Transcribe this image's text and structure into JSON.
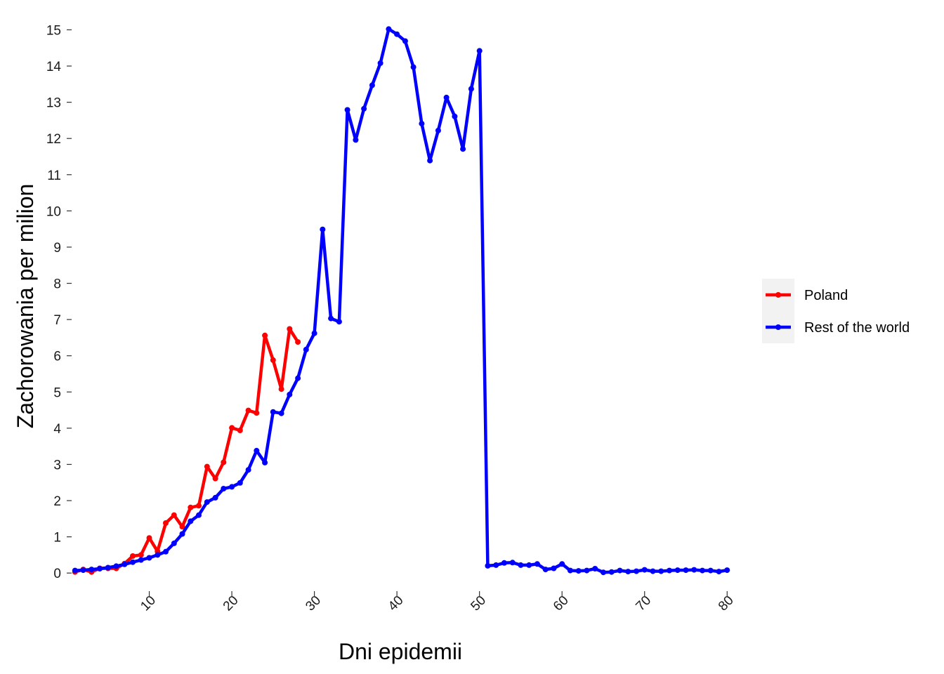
{
  "chart_data": {
    "type": "line",
    "xlabel": "Dni epidemii",
    "ylabel": "Zachorowania per milion",
    "xlim": [
      0,
      81
    ],
    "ylim": [
      -0.5,
      15.3
    ],
    "xticks": [
      10,
      20,
      30,
      40,
      50,
      60,
      70,
      80
    ],
    "yticks": [
      0,
      1,
      2,
      3,
      4,
      5,
      6,
      7,
      8,
      9,
      10,
      11,
      12,
      13,
      14,
      15
    ],
    "grid": false,
    "legend_position": "right",
    "series": [
      {
        "name": "Poland",
        "color": "#ff0000",
        "x": [
          1,
          2,
          3,
          4,
          5,
          6,
          7,
          8,
          9,
          10,
          11,
          12,
          13,
          14,
          15,
          16,
          17,
          18,
          19,
          20,
          21,
          22,
          23,
          24,
          25,
          26,
          27,
          28
        ],
        "y": [
          0.03,
          0.1,
          0.03,
          0.13,
          0.13,
          0.13,
          0.26,
          0.47,
          0.5,
          0.97,
          0.6,
          1.38,
          1.6,
          1.28,
          1.81,
          1.86,
          2.94,
          2.61,
          3.06,
          4.01,
          3.94,
          4.49,
          4.42,
          6.56,
          5.88,
          5.08,
          6.74,
          6.38
        ]
      },
      {
        "name": "Rest of the world",
        "color": "#0000ff",
        "x": [
          1,
          2,
          3,
          4,
          5,
          6,
          7,
          8,
          9,
          10,
          11,
          12,
          13,
          14,
          15,
          16,
          17,
          18,
          19,
          20,
          21,
          22,
          23,
          24,
          25,
          26,
          27,
          28,
          29,
          30,
          31,
          32,
          33,
          34,
          35,
          36,
          37,
          38,
          39,
          40,
          41,
          42,
          43,
          44,
          45,
          46,
          47,
          48,
          49,
          50,
          51,
          52,
          53,
          54,
          55,
          56,
          57,
          58,
          59,
          60,
          61,
          62,
          63,
          64,
          65,
          66,
          67,
          68,
          69,
          70,
          71,
          72,
          73,
          74,
          75,
          76,
          77,
          78,
          79,
          80
        ],
        "y": [
          0.07,
          0.08,
          0.1,
          0.12,
          0.15,
          0.19,
          0.24,
          0.3,
          0.36,
          0.42,
          0.5,
          0.59,
          0.82,
          1.08,
          1.43,
          1.6,
          1.96,
          2.08,
          2.33,
          2.38,
          2.49,
          2.85,
          3.38,
          3.05,
          4.45,
          4.41,
          4.93,
          5.38,
          6.17,
          6.62,
          9.49,
          7.03,
          6.94,
          12.79,
          11.96,
          12.82,
          13.47,
          14.08,
          15.02,
          14.88,
          14.69,
          13.97,
          12.41,
          11.39,
          12.22,
          13.13,
          12.61,
          11.71,
          13.37,
          14.42,
          0.2,
          0.22,
          0.28,
          0.29,
          0.22,
          0.22,
          0.25,
          0.1,
          0.13,
          0.25,
          0.07,
          0.06,
          0.07,
          0.12,
          0.02,
          0.03,
          0.07,
          0.04,
          0.05,
          0.09,
          0.05,
          0.05,
          0.07,
          0.08,
          0.08,
          0.09,
          0.07,
          0.07,
          0.04,
          0.08
        ]
      }
    ]
  }
}
